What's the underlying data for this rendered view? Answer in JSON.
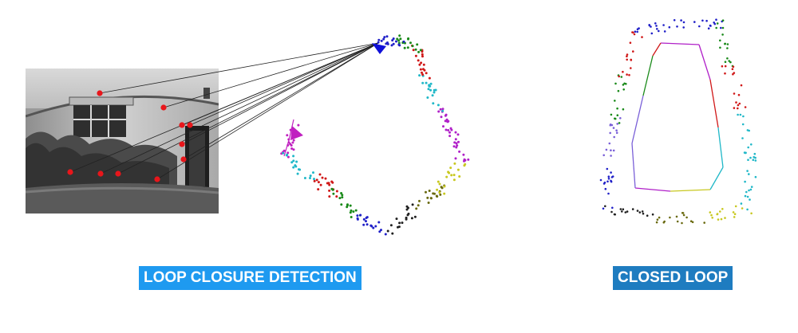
{
  "labels": {
    "loop_closure_detection": "LOOP CLOSURE DETECTION",
    "closed_loop": "CLOSED LOOP"
  },
  "photo": {
    "description_icon": "house-facade-photo-icon"
  },
  "colors": {
    "feature": "#e8161b",
    "match_line": "#222222",
    "current_pose": "#1010d8",
    "start_pose": "#c020c0",
    "label_detection_bg": "#1e9af0",
    "label_closed_bg": "#1e7cc0",
    "segments": [
      "#2020c8",
      "#1a8a1a",
      "#d01818",
      "#20b8c8",
      "#b020c8",
      "#c8c820",
      "#202020",
      "#6a6a10"
    ]
  }
}
